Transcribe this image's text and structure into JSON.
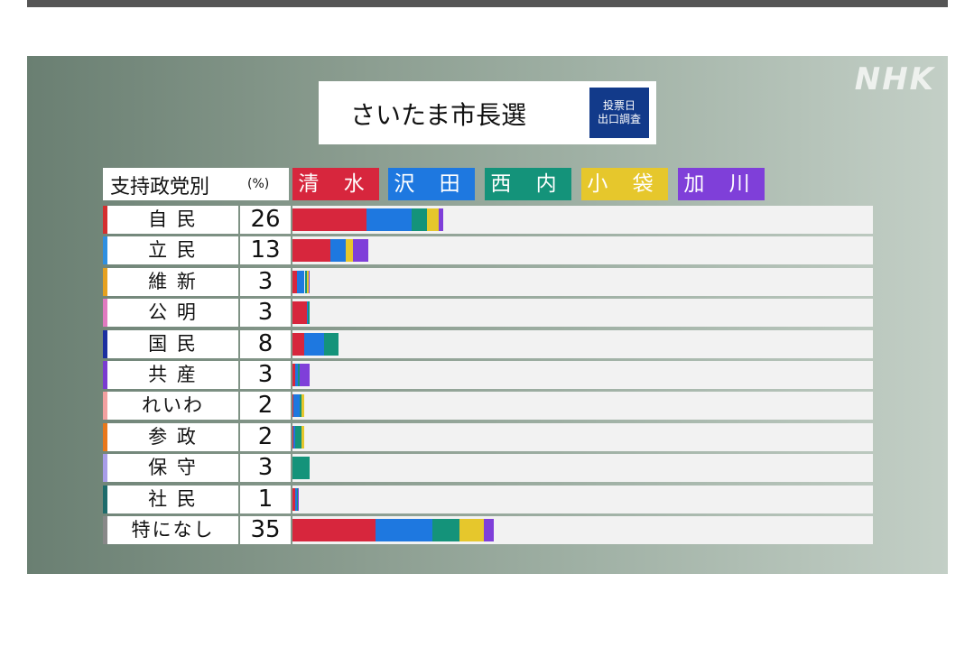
{
  "logo": "NHK",
  "title": "さいたま市長選",
  "badge": [
    "投票日",
    "出口調査"
  ],
  "header": {
    "label": "支持政党別",
    "unit": "(%)"
  },
  "candidates": [
    {
      "name": "清 水",
      "color": "#d7263d"
    },
    {
      "name": "沢 田",
      "color": "#1e78e0"
    },
    {
      "name": "西 内",
      "color": "#14937a"
    },
    {
      "name": "小 袋",
      "color": "#e6c72c"
    },
    {
      "name": "加 川",
      "color": "#7f3fd9"
    }
  ],
  "chart_data": {
    "type": "bar",
    "stacked": true,
    "title": "さいたま市長選",
    "xlabel": "",
    "ylabel": "支持政党別 (%)",
    "categories": [
      "自 民",
      "立 民",
      "維 新",
      "公 明",
      "国 民",
      "共 産",
      "れいわ",
      "参 政",
      "保 守",
      "社 民",
      "特になし"
    ],
    "category_values": [
      26,
      13,
      3,
      3,
      8,
      3,
      2,
      2,
      3,
      1,
      35
    ],
    "category_colors": [
      "#d32f2f",
      "#2f8fe0",
      "#e6a11f",
      "#e07ac0",
      "#1c2fa0",
      "#7a3bd0",
      "#f2a0a0",
      "#e8781c",
      "#a89de8",
      "#1e6b6b",
      "#888888"
    ],
    "xlim": [
      0,
      100
    ],
    "series": [
      {
        "name": "清 水",
        "values": [
          49,
          50,
          25,
          85,
          26,
          15,
          10,
          10,
          0,
          50,
          41
        ]
      },
      {
        "name": "沢 田",
        "values": [
          30,
          21,
          45,
          5,
          42,
          15,
          50,
          10,
          0,
          30,
          28
        ]
      },
      {
        "name": "西 内",
        "values": [
          10,
          0,
          15,
          10,
          32,
          10,
          15,
          60,
          100,
          10,
          13
        ]
      },
      {
        "name": "小 袋",
        "values": [
          8,
          9,
          10,
          0,
          0,
          0,
          25,
          20,
          0,
          0,
          12
        ]
      },
      {
        "name": "加 川",
        "values": [
          3,
          20,
          5,
          0,
          0,
          60,
          0,
          0,
          0,
          10,
          5
        ]
      }
    ]
  }
}
